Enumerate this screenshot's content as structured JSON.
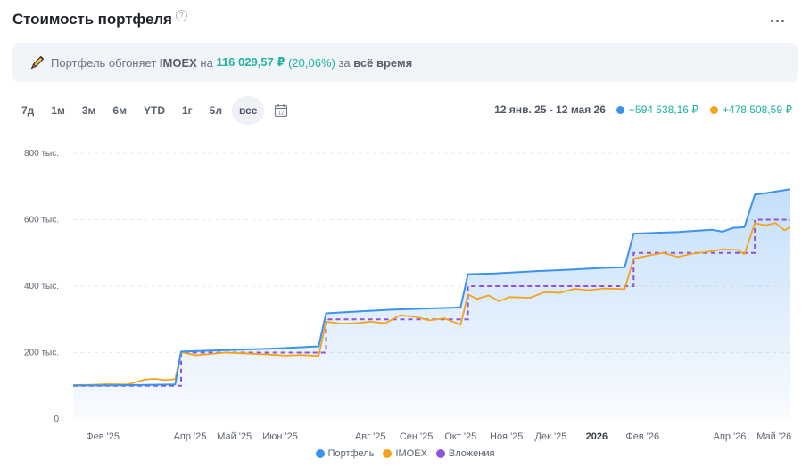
{
  "header": {
    "title": "Стоимость портфеля",
    "help_icon": "help-icon",
    "menu_icon": "more-icon"
  },
  "banner": {
    "icon": "rocket-icon",
    "text_before": "Портфель обгоняет ",
    "index_name": "IMOEX",
    "text_on": " на ",
    "amount": "116 029,57 ₽",
    "percent": "(20,06%)",
    "text_for": " за ",
    "period": "всё время"
  },
  "periods": {
    "items": [
      "7д",
      "1м",
      "3м",
      "6м",
      "YTD",
      "1г",
      "5л",
      "все"
    ],
    "selected": "все",
    "calendar_icon": "calendar-icon",
    "calendar_label": "12"
  },
  "summary": {
    "range": "12 янв. 25 - 12 мая 26",
    "portfolio_change": "+594 538,16 ₽",
    "imoex_change": "+478 508,59 ₽"
  },
  "colors": {
    "portfolio": "#3b93f0",
    "imoex": "#f5a21b",
    "investments": "#8e52dd",
    "positive": "#20b2a0"
  },
  "chart_data": {
    "type": "line",
    "x_domain": [
      "2025-01-12",
      "2026-05-12"
    ],
    "ylim": [
      0,
      800000
    ],
    "y_ticks": [
      {
        "value": 0,
        "label": "0"
      },
      {
        "value": 200000,
        "label": "200 тыс."
      },
      {
        "value": 400000,
        "label": "400 тыс."
      },
      {
        "value": 600000,
        "label": "600 тыс."
      },
      {
        "value": 800000,
        "label": "800 тыс."
      }
    ],
    "x_ticks": [
      {
        "date": "2025-02-01",
        "label": "Фев '25",
        "bold": false
      },
      {
        "date": "2025-04-01",
        "label": "Апр '25",
        "bold": false
      },
      {
        "date": "2025-05-01",
        "label": "Май '25",
        "bold": false
      },
      {
        "date": "2025-06-01",
        "label": "Июн '25",
        "bold": false
      },
      {
        "date": "2025-08-01",
        "label": "Авг '25",
        "bold": false
      },
      {
        "date": "2025-09-01",
        "label": "Сен '25",
        "bold": false
      },
      {
        "date": "2025-10-01",
        "label": "Окт '25",
        "bold": false
      },
      {
        "date": "2025-11-01",
        "label": "Ноя '25",
        "bold": false
      },
      {
        "date": "2025-12-01",
        "label": "Дек '25",
        "bold": false
      },
      {
        "date": "2026-01-01",
        "label": "2026",
        "bold": true
      },
      {
        "date": "2026-02-01",
        "label": "Фев '26",
        "bold": false
      },
      {
        "date": "2026-04-01",
        "label": "Апр '26",
        "bold": false
      },
      {
        "date": "2026-05-01",
        "label": "Май '26",
        "bold": false
      }
    ],
    "grid": true,
    "legend_position": "bottom-center",
    "series": [
      {
        "name": "Портфель",
        "color": "#3b93f0",
        "style": "solid-area",
        "points": [
          [
            "2025-01-12",
            101000
          ],
          [
            "2025-02-08",
            101500
          ],
          [
            "2025-03-08",
            103000
          ],
          [
            "2025-03-22",
            104000
          ],
          [
            "2025-03-26",
            203000
          ],
          [
            "2025-04-15",
            206000
          ],
          [
            "2025-05-15",
            210000
          ],
          [
            "2025-06-01",
            213000
          ],
          [
            "2025-06-24",
            218000
          ],
          [
            "2025-06-27",
            218000
          ],
          [
            "2025-07-02",
            318000
          ],
          [
            "2025-07-20",
            323000
          ],
          [
            "2025-08-15",
            329000
          ],
          [
            "2025-09-10",
            333000
          ],
          [
            "2025-09-25",
            335000
          ],
          [
            "2025-10-01",
            336000
          ],
          [
            "2025-10-06",
            436000
          ],
          [
            "2025-10-24",
            438000
          ],
          [
            "2025-11-20",
            445000
          ],
          [
            "2025-12-15",
            450000
          ],
          [
            "2026-01-05",
            455000
          ],
          [
            "2026-01-20",
            457000
          ],
          [
            "2026-01-26",
            558000
          ],
          [
            "2026-02-25",
            563000
          ],
          [
            "2026-03-20",
            570000
          ],
          [
            "2026-03-27",
            564000
          ],
          [
            "2026-04-03",
            575000
          ],
          [
            "2026-04-11",
            578000
          ],
          [
            "2026-04-18",
            676000
          ],
          [
            "2026-04-25",
            680000
          ],
          [
            "2026-05-12",
            692000
          ]
        ]
      },
      {
        "name": "IMOEX",
        "color": "#f5a21b",
        "style": "solid",
        "points": [
          [
            "2025-01-12",
            102000
          ],
          [
            "2025-01-25",
            103000
          ],
          [
            "2025-02-05",
            105000
          ],
          [
            "2025-02-18",
            104000
          ],
          [
            "2025-03-01",
            118000
          ],
          [
            "2025-03-08",
            121000
          ],
          [
            "2025-03-15",
            117000
          ],
          [
            "2025-03-22",
            120000
          ],
          [
            "2025-03-26",
            201000
          ],
          [
            "2025-04-05",
            192000
          ],
          [
            "2025-04-15",
            196000
          ],
          [
            "2025-04-25",
            200000
          ],
          [
            "2025-05-05",
            198000
          ],
          [
            "2025-05-15",
            196000
          ],
          [
            "2025-05-25",
            194000
          ],
          [
            "2025-06-05",
            191000
          ],
          [
            "2025-06-15",
            193000
          ],
          [
            "2025-06-27",
            190000
          ],
          [
            "2025-07-02",
            293000
          ],
          [
            "2025-07-12",
            287000
          ],
          [
            "2025-07-22",
            288000
          ],
          [
            "2025-08-01",
            293000
          ],
          [
            "2025-08-11",
            288000
          ],
          [
            "2025-08-21",
            312000
          ],
          [
            "2025-08-31",
            308000
          ],
          [
            "2025-09-10",
            297000
          ],
          [
            "2025-09-20",
            303000
          ],
          [
            "2025-09-30",
            286000
          ],
          [
            "2025-10-01",
            283000
          ],
          [
            "2025-10-06",
            375000
          ],
          [
            "2025-10-12",
            362000
          ],
          [
            "2025-10-20",
            372000
          ],
          [
            "2025-10-27",
            355000
          ],
          [
            "2025-11-03",
            367000
          ],
          [
            "2025-11-17",
            365000
          ],
          [
            "2025-11-27",
            382000
          ],
          [
            "2025-12-07",
            380000
          ],
          [
            "2025-12-17",
            392000
          ],
          [
            "2025-12-27",
            388000
          ],
          [
            "2026-01-06",
            393000
          ],
          [
            "2026-01-20",
            391000
          ],
          [
            "2026-01-26",
            483000
          ],
          [
            "2026-02-05",
            492000
          ],
          [
            "2026-02-15",
            500000
          ],
          [
            "2026-02-25",
            488000
          ],
          [
            "2026-03-07",
            498000
          ],
          [
            "2026-03-17",
            503000
          ],
          [
            "2026-03-27",
            511000
          ],
          [
            "2026-04-06",
            509000
          ],
          [
            "2026-04-11",
            496000
          ],
          [
            "2026-04-18",
            590000
          ],
          [
            "2026-04-25",
            583000
          ],
          [
            "2026-05-02",
            590000
          ],
          [
            "2026-05-08",
            568000
          ],
          [
            "2026-05-12",
            578000
          ]
        ]
      },
      {
        "name": "Вложения",
        "color": "#8e52dd",
        "style": "dashed-step",
        "points": [
          [
            "2025-01-12",
            100000
          ],
          [
            "2025-03-26",
            200000
          ],
          [
            "2025-07-02",
            300000
          ],
          [
            "2025-10-06",
            400000
          ],
          [
            "2026-01-26",
            500000
          ],
          [
            "2026-04-18",
            600000
          ],
          [
            "2026-05-12",
            600000
          ]
        ]
      }
    ]
  }
}
